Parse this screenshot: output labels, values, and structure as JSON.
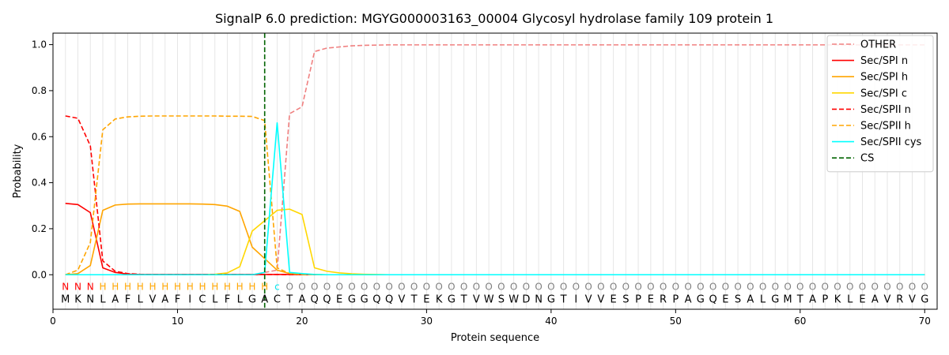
{
  "chart_data": {
    "type": "line",
    "title": "SignalP 6.0 prediction: MGYG000003163_00004 Glycosyl hydrolase family 109 protein 1",
    "xlabel": "Protein sequence",
    "ylabel": "Probability",
    "xlim": [
      0,
      71
    ],
    "ylim": [
      -0.15,
      1.05
    ],
    "xticks": [
      0,
      10,
      20,
      30,
      40,
      50,
      60,
      70
    ],
    "yticks": [
      0.0,
      0.2,
      0.4,
      0.6,
      0.8,
      1.0
    ],
    "grid": "vertical lines at each residue",
    "legend_position": "top-right",
    "sequence": "MKNLAFLVAFICLFLGACTAQQEGGQQVTEKGTVWSWDNGTIVVESPERPAGQESALGMTAPKLEAVRVG",
    "labels": "NNNHHHHHHHHHHHHHHcOOOOOOOOOOOOOOOOOOOOOOOOOOOOOOOOOOOOOOOOOOOOOOOOOOOO",
    "label_colors": {
      "N": "#ff0000",
      "H": "#ffa500",
      "c": "#00e5ee",
      "O": "#808080"
    },
    "cleavage_site": 17,
    "series": [
      {
        "name": "OTHER",
        "color": "#f08080",
        "dash": "dashed",
        "values": [
          0.0,
          0.0,
          0.0,
          0.0,
          0.0,
          0.0,
          0.0,
          0.0,
          0.0,
          0.0,
          0.0,
          0.0,
          0.0,
          0.0,
          0.0,
          0.0,
          0.01,
          0.02,
          0.7,
          0.73,
          0.97,
          0.985,
          0.99,
          0.995,
          0.997,
          0.998,
          0.999,
          0.999,
          0.999,
          0.999,
          0.999,
          0.999,
          0.999,
          0.999,
          0.999,
          0.999,
          0.999,
          0.999,
          0.999,
          0.999,
          0.999,
          0.999,
          0.999,
          0.999,
          0.999,
          0.999,
          0.999,
          0.999,
          0.999,
          0.999,
          0.999,
          0.999,
          0.999,
          0.999,
          0.999,
          0.999,
          0.999,
          0.999,
          0.999,
          0.999,
          0.999,
          0.999,
          0.999,
          0.999,
          0.999,
          0.999,
          0.999,
          0.999,
          0.999,
          0.999
        ]
      },
      {
        "name": "Sec/SPI n",
        "color": "#ff0000",
        "dash": "solid",
        "values": [
          0.31,
          0.305,
          0.27,
          0.03,
          0.01,
          0.003,
          0.001,
          0.001,
          0.001,
          0.001,
          0.001,
          0.001,
          0.001,
          0.001,
          0.001,
          0.001,
          0.001,
          0.001,
          0.001,
          0.0,
          0.0,
          0.0,
          0.0,
          0.0,
          0.0,
          0.0,
          0.0,
          0.0,
          0.0,
          0.0,
          0.0,
          0.0,
          0.0,
          0.0,
          0.0,
          0.0,
          0.0,
          0.0,
          0.0,
          0.0,
          0.0,
          0.0,
          0.0,
          0.0,
          0.0,
          0.0,
          0.0,
          0.0,
          0.0,
          0.0,
          0.0,
          0.0,
          0.0,
          0.0,
          0.0,
          0.0,
          0.0,
          0.0,
          0.0,
          0.0,
          0.0,
          0.0,
          0.0,
          0.0,
          0.0,
          0.0,
          0.0,
          0.0,
          0.0,
          0.0
        ]
      },
      {
        "name": "Sec/SPI h",
        "color": "#ffa500",
        "dash": "solid",
        "values": [
          0.0,
          0.005,
          0.04,
          0.28,
          0.303,
          0.307,
          0.308,
          0.308,
          0.308,
          0.308,
          0.308,
          0.307,
          0.305,
          0.298,
          0.275,
          0.12,
          0.07,
          0.02,
          0.005,
          0.002,
          0.001,
          0.0,
          0.0,
          0.0,
          0.0,
          0.0,
          0.0,
          0.0,
          0.0,
          0.0,
          0.0,
          0.0,
          0.0,
          0.0,
          0.0,
          0.0,
          0.0,
          0.0,
          0.0,
          0.0,
          0.0,
          0.0,
          0.0,
          0.0,
          0.0,
          0.0,
          0.0,
          0.0,
          0.0,
          0.0,
          0.0,
          0.0,
          0.0,
          0.0,
          0.0,
          0.0,
          0.0,
          0.0,
          0.0,
          0.0,
          0.0,
          0.0,
          0.0,
          0.0,
          0.0,
          0.0,
          0.0,
          0.0,
          0.0,
          0.0
        ]
      },
      {
        "name": "Sec/SPI c",
        "color": "#ffd700",
        "dash": "solid",
        "values": [
          0.0,
          0.0,
          0.0,
          0.0,
          0.0,
          0.0,
          0.0,
          0.0,
          0.0,
          0.0,
          0.0,
          0.0,
          0.002,
          0.008,
          0.035,
          0.19,
          0.235,
          0.28,
          0.285,
          0.262,
          0.03,
          0.015,
          0.008,
          0.004,
          0.002,
          0.001,
          0.0,
          0.0,
          0.0,
          0.0,
          0.0,
          0.0,
          0.0,
          0.0,
          0.0,
          0.0,
          0.0,
          0.0,
          0.0,
          0.0,
          0.0,
          0.0,
          0.0,
          0.0,
          0.0,
          0.0,
          0.0,
          0.0,
          0.0,
          0.0,
          0.0,
          0.0,
          0.0,
          0.0,
          0.0,
          0.0,
          0.0,
          0.0,
          0.0,
          0.0,
          0.0,
          0.0,
          0.0,
          0.0,
          0.0,
          0.0,
          0.0,
          0.0,
          0.0,
          0.0
        ]
      },
      {
        "name": "Sec/SPII n",
        "color": "#ff0000",
        "dash": "dashed",
        "values": [
          0.69,
          0.68,
          0.56,
          0.06,
          0.015,
          0.005,
          0.002,
          0.001,
          0.001,
          0.001,
          0.001,
          0.001,
          0.001,
          0.001,
          0.001,
          0.001,
          0.001,
          0.001,
          0.0,
          0.0,
          0.0,
          0.0,
          0.0,
          0.0,
          0.0,
          0.0,
          0.0,
          0.0,
          0.0,
          0.0,
          0.0,
          0.0,
          0.0,
          0.0,
          0.0,
          0.0,
          0.0,
          0.0,
          0.0,
          0.0,
          0.0,
          0.0,
          0.0,
          0.0,
          0.0,
          0.0,
          0.0,
          0.0,
          0.0,
          0.0,
          0.0,
          0.0,
          0.0,
          0.0,
          0.0,
          0.0,
          0.0,
          0.0,
          0.0,
          0.0,
          0.0,
          0.0,
          0.0,
          0.0,
          0.0,
          0.0,
          0.0,
          0.0,
          0.0,
          0.0
        ]
      },
      {
        "name": "Sec/SPII h",
        "color": "#ffa500",
        "dash": "dashed",
        "values": [
          0.0,
          0.02,
          0.14,
          0.63,
          0.677,
          0.686,
          0.689,
          0.69,
          0.69,
          0.69,
          0.69,
          0.69,
          0.69,
          0.689,
          0.689,
          0.688,
          0.67,
          0.03,
          0.005,
          0.001,
          0.0,
          0.0,
          0.0,
          0.0,
          0.0,
          0.0,
          0.0,
          0.0,
          0.0,
          0.0,
          0.0,
          0.0,
          0.0,
          0.0,
          0.0,
          0.0,
          0.0,
          0.0,
          0.0,
          0.0,
          0.0,
          0.0,
          0.0,
          0.0,
          0.0,
          0.0,
          0.0,
          0.0,
          0.0,
          0.0,
          0.0,
          0.0,
          0.0,
          0.0,
          0.0,
          0.0,
          0.0,
          0.0,
          0.0,
          0.0,
          0.0,
          0.0,
          0.0,
          0.0,
          0.0,
          0.0,
          0.0,
          0.0,
          0.0,
          0.0
        ]
      },
      {
        "name": "Sec/SPII cys",
        "color": "#00ffff",
        "dash": "solid",
        "values": [
          0.0,
          0.0,
          0.0,
          0.0,
          0.0,
          0.0,
          0.0,
          0.0,
          0.0,
          0.0,
          0.0,
          0.0,
          0.0,
          0.0,
          0.0,
          0.0,
          0.01,
          0.66,
          0.01,
          0.005,
          0.001,
          0.0,
          0.0,
          0.0,
          0.0,
          0.0,
          0.0,
          0.0,
          0.0,
          0.0,
          0.0,
          0.0,
          0.0,
          0.0,
          0.0,
          0.0,
          0.0,
          0.0,
          0.0,
          0.0,
          0.0,
          0.0,
          0.0,
          0.0,
          0.0,
          0.0,
          0.0,
          0.0,
          0.0,
          0.0,
          0.0,
          0.0,
          0.0,
          0.0,
          0.0,
          0.0,
          0.0,
          0.0,
          0.0,
          0.0,
          0.0,
          0.0,
          0.0,
          0.0,
          0.0,
          0.0,
          0.0,
          0.0,
          0.0,
          0.0
        ]
      }
    ],
    "cs_legend": {
      "name": "CS",
      "color": "#006400",
      "dash": "dashed"
    }
  }
}
